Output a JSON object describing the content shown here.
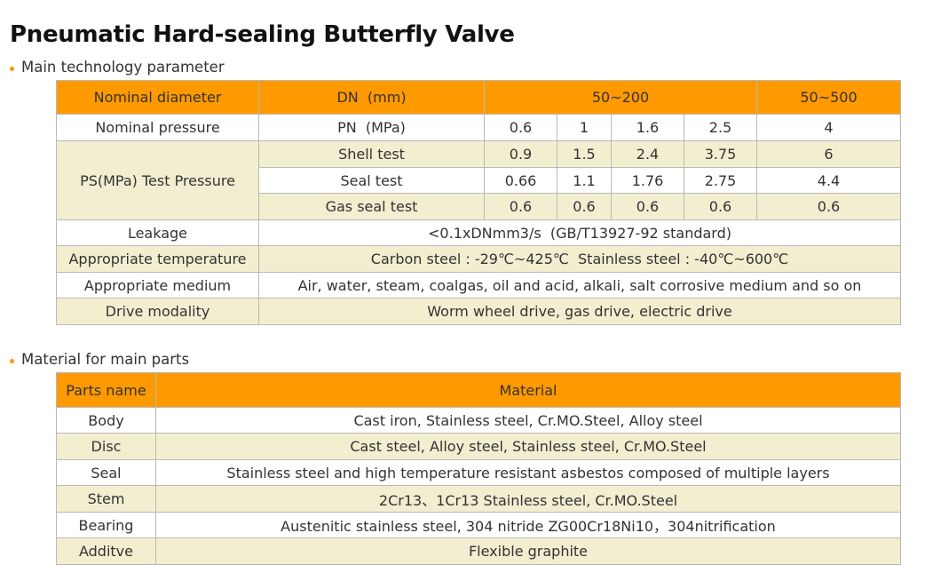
{
  "page": {
    "title": "Pneumatic Hard-sealing Butterfly Valve"
  },
  "tech": {
    "heading": "Main technology parameter",
    "nominal_diameter": {
      "label": "Nominal diameter",
      "unit": "DN  (mm)",
      "range_a": "50~200",
      "range_b": "50~500"
    },
    "nominal_pressure": {
      "label": "Nominal pressure",
      "unit": "PN  (MPa)",
      "values": [
        "0.6",
        "1",
        "1.6",
        "2.5",
        "4"
      ]
    },
    "test_pressure": {
      "label": "PS(MPa) Test Pressure",
      "rows": [
        {
          "name": "Shell test",
          "values": [
            "0.9",
            "1.5",
            "2.4",
            "3.75",
            "6"
          ]
        },
        {
          "name": "Seal test",
          "values": [
            "0.66",
            "1.1",
            "1.76",
            "2.75",
            "4.4"
          ]
        },
        {
          "name": "Gas seal test",
          "values": [
            "0.6",
            "0.6",
            "0.6",
            "0.6",
            "0.6"
          ]
        }
      ]
    },
    "leakage": {
      "label": "Leakage",
      "value": "<0.1xDNmm3/s  (GB/T13927-92 standard)"
    },
    "temperature": {
      "label": "Appropriate temperature",
      "value": "Carbon steel : -29℃~425℃  Stainless steel : -40℃~600℃"
    },
    "medium": {
      "label": "Appropriate medium",
      "value": "Air, water, steam, coalgas, oil and acid, alkali, salt corrosive medium and so on"
    },
    "drive": {
      "label": "Drive modality",
      "value": "Worm wheel drive, gas drive, electric drive"
    }
  },
  "materials": {
    "heading": "Material for main parts",
    "col_part": "Parts name",
    "col_material": "Material",
    "rows": [
      {
        "part": "Body",
        "material": "Cast iron, Stainless steel, Cr.MO.Steel, Alloy steel"
      },
      {
        "part": "Disc",
        "material": "Cast steel, Alloy steel, Stainless steel, Cr.MO.Steel"
      },
      {
        "part": "Seal",
        "material": "Stainless steel and high temperature resistant asbestos composed of multiple layers"
      },
      {
        "part": "Stem",
        "material": "2Cr13、1Cr13 Stainless steel, Cr.MO.Steel"
      },
      {
        "part": "Bearing",
        "material": "Austenitic stainless steel, 304 nitride ZG00Cr18Ni10，304nitrification"
      },
      {
        "part": "Additve",
        "material": "Flexible graphite"
      }
    ]
  },
  "colors": {
    "header_orange": "#ff9900",
    "row_beige": "#f2eed0",
    "bullet_orange": "#f39c12",
    "border_gray": "#b9b9b9"
  }
}
